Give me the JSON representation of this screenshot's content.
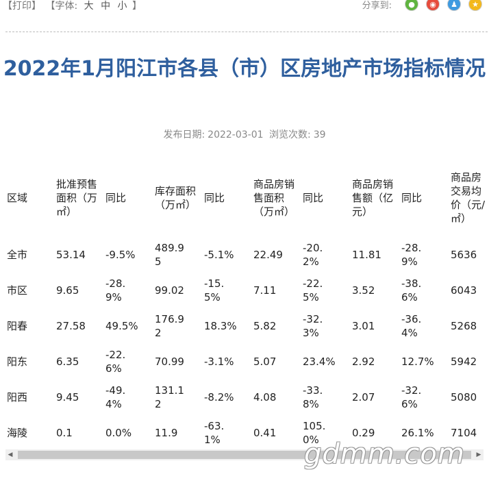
{
  "toolbar": {
    "print_label": "【打印】",
    "font_label": "【字体:",
    "size_large": "大",
    "size_medium": "中",
    "size_small": "小",
    "font_close": "】",
    "share_label": "分享到:"
  },
  "share_icons": [
    "wechat-icon",
    "weibo-icon",
    "qq-icon",
    "qzone-icon"
  ],
  "article": {
    "title": "2022年1月阳江市各县（市）区房地产市场指标情况",
    "publish_label": "发布日期:",
    "publish_date": "2022-03-01",
    "views_label": "浏览次数:",
    "views": "39"
  },
  "table": {
    "headers": [
      "区域",
      "批准预售面积（万㎡）",
      "同比",
      "库存面积（万㎡）",
      "同比",
      "商品房销售面积（万㎡）",
      "同比",
      "商品房销售额（亿元）",
      "同比",
      "商品房交易均价（元/㎡）"
    ],
    "rows": [
      [
        "全市",
        "53.14",
        "-9.5%",
        "489.95",
        "-5.1%",
        "22.49",
        "-20.2%",
        "11.81",
        "-28.9%",
        "5636"
      ],
      [
        "市区",
        "9.65",
        "-28.9%",
        "99.02",
        "-15.5%",
        "7.11",
        "-22.5%",
        "3.52",
        "-38.6%",
        "6043"
      ],
      [
        "阳春",
        "27.58",
        "49.5%",
        "176.92",
        "18.3%",
        "5.82",
        "-32.3%",
        "3.01",
        "-36.4%",
        "5268"
      ],
      [
        "阳东",
        "6.35",
        "-22.6%",
        "70.99",
        "-3.1%",
        "5.07",
        "23.4%",
        "2.92",
        "12.7%",
        "5942"
      ],
      [
        "阳西",
        "9.45",
        "-49.4%",
        "131.12",
        "-8.2%",
        "4.08",
        "-33.8%",
        "2.07",
        "-32.6%",
        "5080"
      ],
      [
        "海陵",
        "0.1",
        "0.0%",
        "11.9",
        "-63.1%",
        "0.41",
        "105.0%",
        "0.29",
        "26.1%",
        "7104"
      ]
    ]
  },
  "watermark": "gdmm.com"
}
